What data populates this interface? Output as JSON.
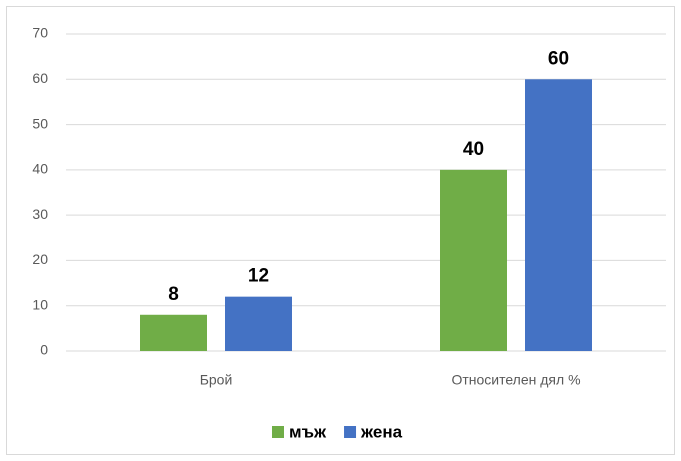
{
  "chart_data": {
    "type": "bar",
    "categories": [
      "Брой",
      "Относителен дял %"
    ],
    "series": [
      {
        "name": "мъж",
        "color": "#70ad47",
        "values": [
          8,
          40
        ]
      },
      {
        "name": "жена",
        "color": "#4472c4",
        "values": [
          12,
          60
        ]
      }
    ],
    "ylim": [
      0,
      70
    ],
    "yticks": [
      0,
      10,
      20,
      30,
      40,
      50,
      60,
      70
    ],
    "grid": true,
    "legend": "bottom"
  }
}
